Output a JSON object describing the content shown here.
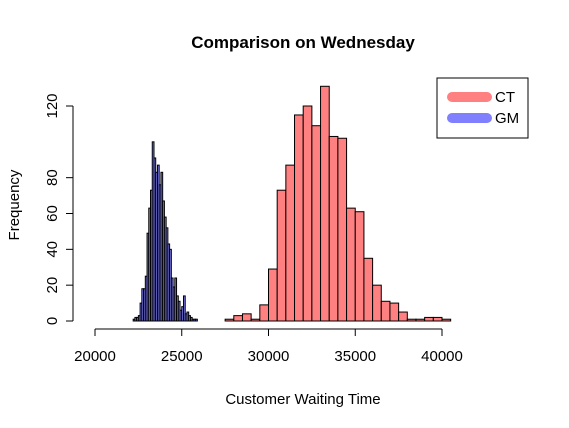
{
  "chart_data": {
    "type": "bar",
    "title": "Comparison on Wednesday",
    "xlabel": "Customer Waiting Time",
    "ylabel": "Frequency",
    "xlim": [
      20000,
      40000
    ],
    "ylim": [
      0,
      120
    ],
    "x_ticks": [
      20000,
      25000,
      30000,
      35000,
      40000
    ],
    "y_ticks": [
      0,
      20,
      40,
      60,
      80,
      120
    ],
    "grid": false,
    "legend_position": "top-right",
    "series": [
      {
        "name": "CT",
        "color": "#ff8080",
        "bin_width": 500,
        "bin_start": 27500,
        "values": [
          1,
          3,
          4,
          1,
          9,
          29,
          73,
          87,
          115,
          120,
          109,
          131,
          103,
          102,
          63,
          61,
          35,
          20,
          11,
          10,
          5,
          1,
          1,
          2,
          2,
          1
        ]
      },
      {
        "name": "GM",
        "color": "#8080ff",
        "bin_width": 100,
        "bin_start": 22200,
        "values": [
          1,
          2,
          2,
          3,
          10,
          18,
          18,
          25,
          49,
          63,
          73,
          100,
          91,
          83,
          87,
          76,
          83,
          67,
          58,
          52,
          43,
          40,
          24,
          19,
          24,
          14,
          11,
          6,
          8,
          14,
          4,
          5,
          3,
          2,
          1,
          1,
          1
        ]
      }
    ],
    "legend": [
      {
        "label": "CT",
        "color": "#ff8080"
      },
      {
        "label": "GM",
        "color": "#8080ff"
      }
    ]
  }
}
